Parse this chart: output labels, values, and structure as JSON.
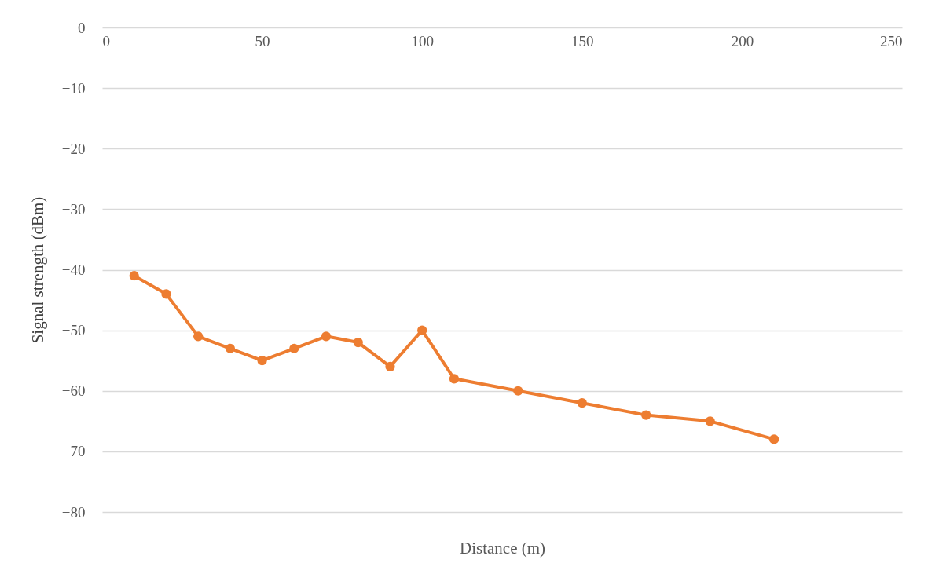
{
  "chart_data": {
    "type": "line",
    "xlabel": "Distance (m)",
    "ylabel": "Signal strength (dBm)",
    "x": [
      10,
      20,
      30,
      40,
      50,
      60,
      70,
      80,
      90,
      100,
      110,
      130,
      150,
      170,
      190,
      210
    ],
    "series": [
      {
        "color": "#ed7d31",
        "values": [
          -41,
          -44,
          -51,
          -53,
          -55,
          -53,
          -51,
          -52,
          -56,
          -50,
          -58,
          -60,
          -62,
          -64,
          -65,
          -68
        ]
      }
    ],
    "xlim": [
      0,
      250
    ],
    "xticks": [
      0,
      50,
      100,
      150,
      200,
      250
    ],
    "ylim": [
      -80,
      0
    ],
    "yticks": [
      0,
      -10,
      -20,
      -30,
      -40,
      -50,
      -60,
      -70,
      -80
    ],
    "grid": "y",
    "marker": "circle",
    "line_style": "solid"
  }
}
